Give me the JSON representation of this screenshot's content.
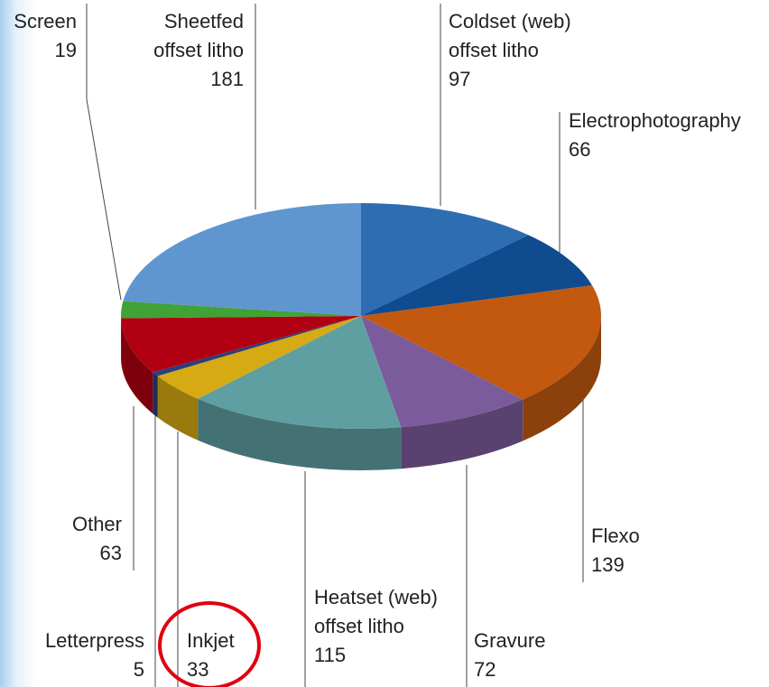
{
  "chart_data": {
    "type": "pie",
    "categories": [
      "Coldset (web) offset litho",
      "Electrophotography",
      "Flexo",
      "Gravure",
      "Heatset (web) offset litho",
      "Inkjet",
      "Letterpress",
      "Other",
      "Screen",
      "Sheetfed offset litho"
    ],
    "values": [
      97,
      66,
      139,
      72,
      115,
      33,
      5,
      63,
      19,
      181
    ],
    "colors": [
      "#2e6db2",
      "#0f4b8e",
      "#c2590f",
      "#7b5b9b",
      "#5f9fa1",
      "#d6aa12",
      "#2b3f7c",
      "#b10012",
      "#41a236",
      "#5f96d0"
    ]
  }
}
